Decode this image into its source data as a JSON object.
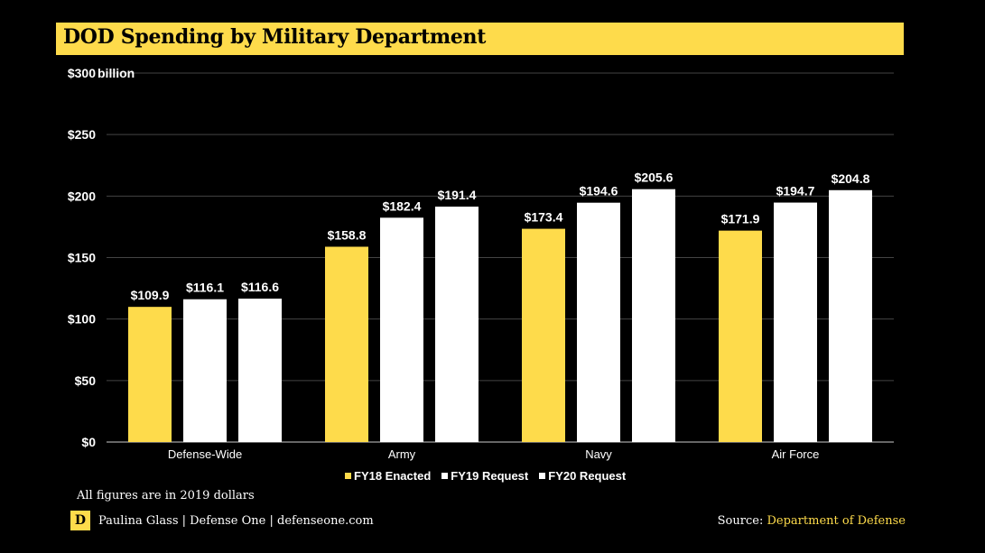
{
  "header": {
    "title": "DOD Spending by Military Department"
  },
  "chart_data": {
    "type": "bar",
    "title": "DOD Spending by Military Department",
    "xlabel": "",
    "ylabel": "",
    "y_unit_label": "billion",
    "ylim": [
      0,
      300
    ],
    "yticks": [
      0,
      50,
      100,
      150,
      200,
      250,
      300
    ],
    "ytick_labels": [
      "$0",
      "$50",
      "$100",
      "$150",
      "$200",
      "$250",
      "$300"
    ],
    "grid": true,
    "legend_position": "bottom-center",
    "categories": [
      "Defense-Wide",
      "Army",
      "Navy",
      "Air Force"
    ],
    "series": [
      {
        "name": "FY18 Enacted",
        "color": "#FEDB4B",
        "values": [
          109.9,
          158.8,
          173.4,
          171.9
        ],
        "labels": [
          "$109.9",
          "$158.8",
          "$173.4",
          "$171.9"
        ]
      },
      {
        "name": "FY19 Request",
        "color": "#FFFFFF",
        "values": [
          116.1,
          182.4,
          194.6,
          194.7
        ],
        "labels": [
          "$116.1",
          "$182.4",
          "$194.6",
          "$194.7"
        ]
      },
      {
        "name": "FY20 Request",
        "color": "#FFFFFF",
        "values": [
          116.6,
          191.4,
          205.6,
          204.8
        ],
        "labels": [
          "$116.6",
          "$191.4",
          "$205.6",
          "$204.8"
        ]
      }
    ]
  },
  "footer": {
    "note": "All figures are in 2019 dollars",
    "logo_letter": "D",
    "byline": "Paulina Glass | Defense One | defenseone.com",
    "source_prefix": "Source:",
    "source_name": "Department of Defense"
  },
  "colors": {
    "accent": "#FEDB4B",
    "background": "#000000",
    "gridline": "#444444"
  }
}
